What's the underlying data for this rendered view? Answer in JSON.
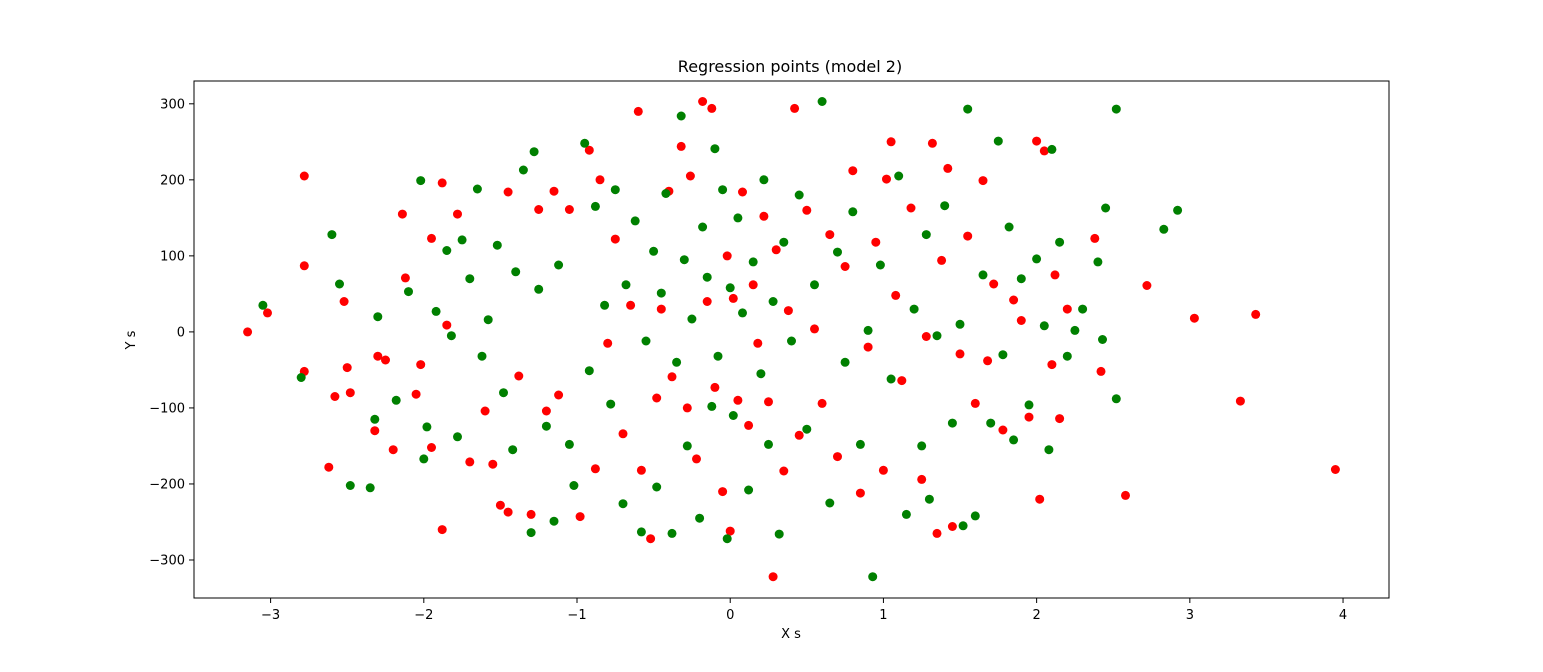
{
  "chart_data": {
    "type": "scatter",
    "title": "Regression points (model 2)",
    "xlabel": "X s",
    "ylabel": "Y s",
    "xlim": [
      -3.5,
      4.3
    ],
    "ylim": [
      -350,
      330
    ],
    "xticks": [
      -3,
      -2,
      -1,
      0,
      1,
      2,
      3,
      4
    ],
    "xtick_labels": [
      "−3",
      "−2",
      "−1",
      "0",
      "1",
      "2",
      "3",
      "4"
    ],
    "yticks": [
      -300,
      -200,
      -100,
      0,
      100,
      200,
      300
    ],
    "ytick_labels": [
      "−300",
      "−200",
      "−100",
      "0",
      "100",
      "200",
      "300"
    ],
    "grid": false,
    "legend": "none",
    "series": [
      {
        "color": "#ff0000",
        "points": [
          [
            -3.15,
            0
          ],
          [
            -3.02,
            25
          ],
          [
            -2.78,
            205
          ],
          [
            -2.78,
            87
          ],
          [
            -2.78,
            -52
          ],
          [
            -2.62,
            -178
          ],
          [
            -2.58,
            -85
          ],
          [
            -2.52,
            40
          ],
          [
            -2.5,
            -47
          ],
          [
            -2.48,
            -80
          ],
          [
            -2.32,
            -130
          ],
          [
            -2.3,
            -32
          ],
          [
            -2.25,
            -37
          ],
          [
            -2.2,
            -155
          ],
          [
            -2.14,
            155
          ],
          [
            -2.12,
            71
          ],
          [
            -2.05,
            -82
          ],
          [
            -2.02,
            -43
          ],
          [
            -1.95,
            123
          ],
          [
            -1.95,
            -152
          ],
          [
            -1.88,
            196
          ],
          [
            -1.88,
            -260
          ],
          [
            -1.85,
            9
          ],
          [
            -1.78,
            155
          ],
          [
            -1.7,
            -171
          ],
          [
            -1.6,
            -104
          ],
          [
            -1.55,
            -174
          ],
          [
            -1.5,
            -228
          ],
          [
            -1.45,
            -237
          ],
          [
            -1.45,
            184
          ],
          [
            -1.38,
            -58
          ],
          [
            -1.3,
            -240
          ],
          [
            -1.25,
            161
          ],
          [
            -1.2,
            -104
          ],
          [
            -1.15,
            185
          ],
          [
            -1.12,
            -83
          ],
          [
            -1.05,
            161
          ],
          [
            -0.98,
            -243
          ],
          [
            -0.92,
            239
          ],
          [
            -0.88,
            -180
          ],
          [
            -0.85,
            200
          ],
          [
            -0.8,
            -15
          ],
          [
            -0.75,
            122
          ],
          [
            -0.7,
            -134
          ],
          [
            -0.65,
            35
          ],
          [
            -0.6,
            290
          ],
          [
            -0.58,
            -182
          ],
          [
            -0.52,
            -272
          ],
          [
            -0.48,
            -87
          ],
          [
            -0.45,
            30
          ],
          [
            -0.4,
            185
          ],
          [
            -0.38,
            -59
          ],
          [
            -0.32,
            244
          ],
          [
            -0.28,
            -100
          ],
          [
            -0.26,
            205
          ],
          [
            -0.22,
            -167
          ],
          [
            -0.18,
            303
          ],
          [
            -0.15,
            40
          ],
          [
            -0.12,
            294
          ],
          [
            -0.1,
            -73
          ],
          [
            -0.05,
            -210
          ],
          [
            -0.02,
            100
          ],
          [
            0.0,
            -262
          ],
          [
            0.02,
            44
          ],
          [
            0.05,
            -90
          ],
          [
            0.08,
            184
          ],
          [
            0.12,
            -123
          ],
          [
            0.15,
            62
          ],
          [
            0.18,
            -15
          ],
          [
            0.22,
            152
          ],
          [
            0.25,
            -92
          ],
          [
            0.28,
            -322
          ],
          [
            0.3,
            108
          ],
          [
            0.35,
            -183
          ],
          [
            0.38,
            28
          ],
          [
            0.42,
            294
          ],
          [
            0.45,
            -136
          ],
          [
            0.5,
            160
          ],
          [
            0.55,
            4
          ],
          [
            0.6,
            -94
          ],
          [
            0.65,
            128
          ],
          [
            0.7,
            -164
          ],
          [
            0.75,
            86
          ],
          [
            0.8,
            212
          ],
          [
            0.85,
            -212
          ],
          [
            0.9,
            -20
          ],
          [
            0.95,
            118
          ],
          [
            1.0,
            -182
          ],
          [
            1.02,
            201
          ],
          [
            1.05,
            250
          ],
          [
            1.08,
            48
          ],
          [
            1.12,
            -64
          ],
          [
            1.18,
            163
          ],
          [
            1.25,
            -194
          ],
          [
            1.28,
            -6
          ],
          [
            1.32,
            248
          ],
          [
            1.35,
            -265
          ],
          [
            1.38,
            94
          ],
          [
            1.42,
            215
          ],
          [
            1.45,
            -256
          ],
          [
            1.5,
            -29
          ],
          [
            1.55,
            126
          ],
          [
            1.6,
            -94
          ],
          [
            1.65,
            199
          ],
          [
            1.68,
            -38
          ],
          [
            1.72,
            63
          ],
          [
            1.78,
            -129
          ],
          [
            1.85,
            42
          ],
          [
            1.9,
            15
          ],
          [
            1.95,
            -112
          ],
          [
            2.0,
            251
          ],
          [
            2.02,
            -220
          ],
          [
            2.05,
            238
          ],
          [
            2.1,
            -43
          ],
          [
            2.12,
            75
          ],
          [
            2.15,
            -114
          ],
          [
            2.2,
            30
          ],
          [
            2.38,
            123
          ],
          [
            2.42,
            -52
          ],
          [
            2.58,
            -215
          ],
          [
            2.72,
            61
          ],
          [
            3.03,
            18
          ],
          [
            3.33,
            -91
          ],
          [
            3.43,
            23
          ],
          [
            3.95,
            -181
          ]
        ]
      },
      {
        "color": "#008000",
        "points": [
          [
            -3.05,
            35
          ],
          [
            -2.8,
            -60
          ],
          [
            -2.6,
            128
          ],
          [
            -2.55,
            63
          ],
          [
            -2.48,
            -202
          ],
          [
            -2.35,
            -205
          ],
          [
            -2.32,
            -115
          ],
          [
            -2.3,
            20
          ],
          [
            -2.18,
            -90
          ],
          [
            -2.1,
            53
          ],
          [
            -2.02,
            199
          ],
          [
            -2.0,
            -167
          ],
          [
            -1.98,
            -125
          ],
          [
            -1.92,
            27
          ],
          [
            -1.85,
            107
          ],
          [
            -1.82,
            -5
          ],
          [
            -1.78,
            -138
          ],
          [
            -1.75,
            121
          ],
          [
            -1.7,
            70
          ],
          [
            -1.65,
            188
          ],
          [
            -1.62,
            -32
          ],
          [
            -1.58,
            16
          ],
          [
            -1.52,
            114
          ],
          [
            -1.48,
            -80
          ],
          [
            -1.42,
            -155
          ],
          [
            -1.4,
            79
          ],
          [
            -1.35,
            213
          ],
          [
            -1.3,
            -264
          ],
          [
            -1.28,
            237
          ],
          [
            -1.25,
            56
          ],
          [
            -1.2,
            -124
          ],
          [
            -1.15,
            -249
          ],
          [
            -1.12,
            88
          ],
          [
            -1.05,
            -148
          ],
          [
            -1.02,
            -202
          ],
          [
            -0.95,
            248
          ],
          [
            -0.92,
            -51
          ],
          [
            -0.88,
            165
          ],
          [
            -0.82,
            35
          ],
          [
            -0.78,
            -95
          ],
          [
            -0.75,
            187
          ],
          [
            -0.7,
            -226
          ],
          [
            -0.68,
            62
          ],
          [
            -0.62,
            146
          ],
          [
            -0.58,
            -263
          ],
          [
            -0.55,
            -12
          ],
          [
            -0.5,
            106
          ],
          [
            -0.48,
            -204
          ],
          [
            -0.45,
            51
          ],
          [
            -0.42,
            182
          ],
          [
            -0.38,
            -265
          ],
          [
            -0.35,
            -40
          ],
          [
            -0.32,
            284
          ],
          [
            -0.3,
            95
          ],
          [
            -0.28,
            -150
          ],
          [
            -0.25,
            17
          ],
          [
            -0.2,
            -245
          ],
          [
            -0.18,
            138
          ],
          [
            -0.15,
            72
          ],
          [
            -0.12,
            -98
          ],
          [
            -0.1,
            241
          ],
          [
            -0.08,
            -32
          ],
          [
            -0.05,
            187
          ],
          [
            -0.02,
            -272
          ],
          [
            0.0,
            58
          ],
          [
            0.02,
            -110
          ],
          [
            0.05,
            150
          ],
          [
            0.08,
            25
          ],
          [
            0.12,
            -208
          ],
          [
            0.15,
            92
          ],
          [
            0.2,
            -55
          ],
          [
            0.22,
            200
          ],
          [
            0.25,
            -148
          ],
          [
            0.28,
            40
          ],
          [
            0.32,
            -266
          ],
          [
            0.35,
            118
          ],
          [
            0.4,
            -12
          ],
          [
            0.45,
            180
          ],
          [
            0.5,
            -128
          ],
          [
            0.55,
            62
          ],
          [
            0.6,
            303
          ],
          [
            0.65,
            -225
          ],
          [
            0.7,
            105
          ],
          [
            0.75,
            -40
          ],
          [
            0.8,
            158
          ],
          [
            0.85,
            -148
          ],
          [
            0.9,
            2
          ],
          [
            0.93,
            -322
          ],
          [
            0.98,
            88
          ],
          [
            1.05,
            -62
          ],
          [
            1.1,
            205
          ],
          [
            1.15,
            -240
          ],
          [
            1.2,
            30
          ],
          [
            1.25,
            -150
          ],
          [
            1.28,
            128
          ],
          [
            1.3,
            -220
          ],
          [
            1.35,
            -5
          ],
          [
            1.4,
            166
          ],
          [
            1.45,
            -120
          ],
          [
            1.5,
            10
          ],
          [
            1.52,
            -255
          ],
          [
            1.55,
            293
          ],
          [
            1.6,
            -242
          ],
          [
            1.65,
            75
          ],
          [
            1.7,
            -120
          ],
          [
            1.75,
            251
          ],
          [
            1.78,
            -30
          ],
          [
            1.82,
            138
          ],
          [
            1.85,
            -142
          ],
          [
            1.9,
            70
          ],
          [
            1.95,
            -96
          ],
          [
            2.0,
            96
          ],
          [
            2.05,
            8
          ],
          [
            2.08,
            -155
          ],
          [
            2.1,
            240
          ],
          [
            2.15,
            118
          ],
          [
            2.2,
            -32
          ],
          [
            2.25,
            2
          ],
          [
            2.3,
            30
          ],
          [
            2.4,
            92
          ],
          [
            2.43,
            -10
          ],
          [
            2.45,
            163
          ],
          [
            2.52,
            -88
          ],
          [
            2.52,
            293
          ],
          [
            2.83,
            135
          ],
          [
            2.92,
            160
          ]
        ]
      }
    ]
  }
}
